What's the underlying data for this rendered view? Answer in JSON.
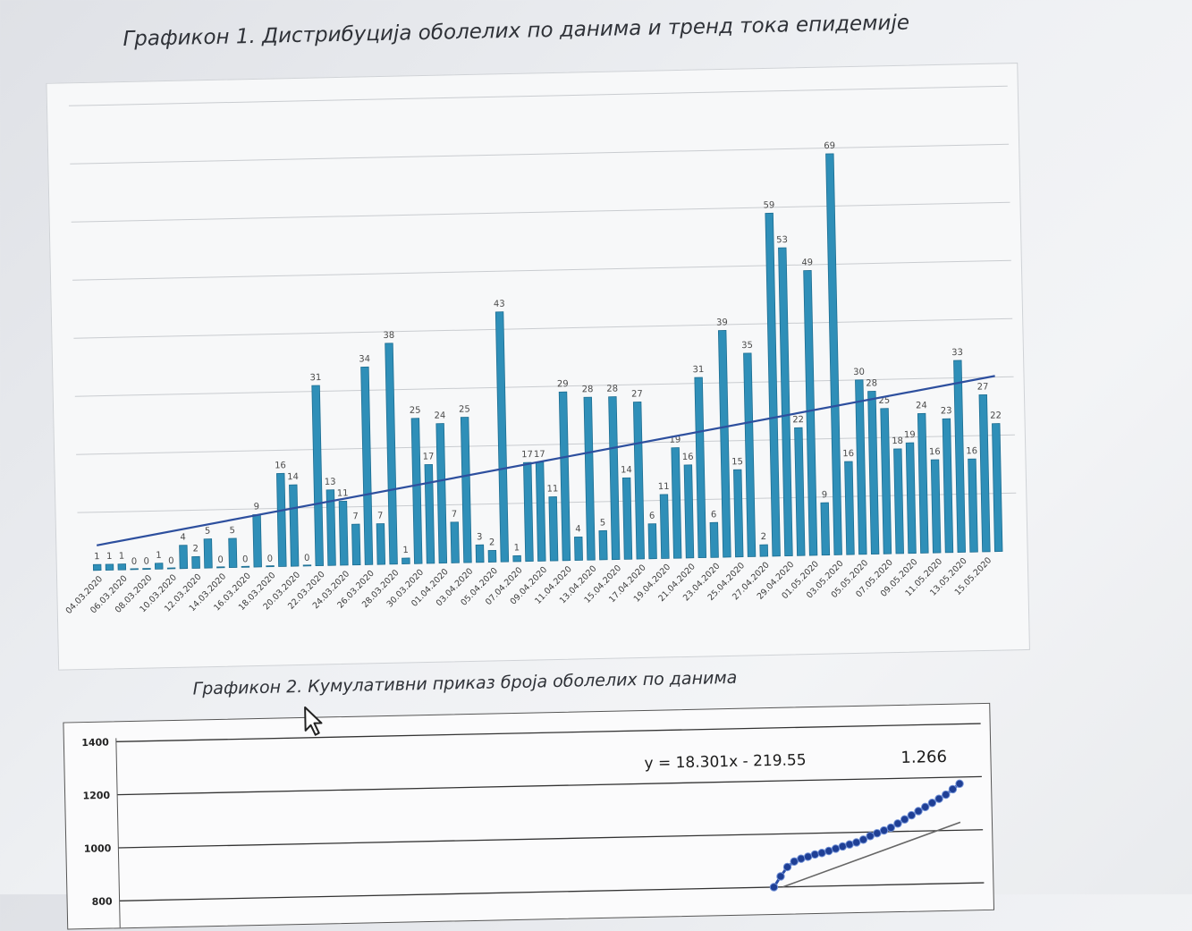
{
  "chart1": {
    "title": "Графикон 1. Дистрибуција оболелих по данима и тренд тока епидемије",
    "chart_data": {
      "type": "bar",
      "values": [
        1,
        1,
        1,
        0,
        0,
        1,
        0,
        4,
        2,
        5,
        0,
        5,
        0,
        9,
        0,
        16,
        14,
        0,
        31,
        13,
        11,
        7,
        34,
        7,
        38,
        1,
        25,
        17,
        24,
        7,
        25,
        3,
        2,
        43,
        1,
        17,
        17,
        11,
        29,
        4,
        28,
        5,
        28,
        14,
        27,
        6,
        11,
        19,
        16,
        31,
        6,
        39,
        15,
        35,
        2,
        59,
        53,
        22,
        49,
        9,
        69,
        16,
        30,
        28,
        25,
        18,
        19,
        24,
        16,
        23,
        33,
        16,
        27,
        22
      ],
      "tick_labels": [
        "04.03.2020",
        "06.03.2020",
        "08.03.2020",
        "10.03.2020",
        "12.03.2020",
        "14.03.2020",
        "16.03.2020",
        "18.03.2020",
        "20.03.2020",
        "22.03.2020",
        "24.03.2020",
        "26.03.2020",
        "28.03.2020",
        "30.03.2020",
        "01.04.2020",
        "03.04.2020",
        "05.04.2020",
        "07.04.2020",
        "09.04.2020",
        "11.04.2020",
        "13.04.2020",
        "15.04.2020",
        "17.04.2020",
        "19.04.2020",
        "21.04.2020",
        "23.04.2020",
        "25.04.2020",
        "27.04.2020",
        "29.04.2020",
        "01.05.2020",
        "03.05.2020",
        "05.05.2020",
        "07.05.2020",
        "09.05.2020",
        "11.05.2020",
        "13.05.2020",
        "15.05.2020"
      ],
      "trend": {
        "type": "linear",
        "start": 4.3,
        "end": 30.2
      },
      "ylim": [
        0,
        80
      ],
      "gridlines": [
        10,
        20,
        30,
        40,
        50,
        60,
        70,
        80
      ],
      "grid": true,
      "colors": {
        "bar": "#2f8fb8",
        "bar_edge": "#1d6e92",
        "trend": "#2d4f9e",
        "grid": "#c9ccd0",
        "label": "#4a4a4a"
      }
    }
  },
  "chart2": {
    "title": "Графикон 2. Кумулативни приказ броја оболелих по данима",
    "chart_data": {
      "type": "line",
      "ytick_labels": [
        "1400",
        "1200",
        "1000",
        "800"
      ],
      "ylim": [
        800,
        1400
      ],
      "equation": "y = 18.301x - 219.55",
      "annotation": "1.266",
      "series": [
        {
          "values": [
            800,
            840,
            875,
            895,
            905,
            912,
            920,
            925,
            932,
            940,
            948,
            955,
            962,
            972,
            985,
            995,
            1005,
            1015,
            1030,
            1045,
            1060,
            1075,
            1090,
            1105,
            1120,
            1135,
            1155,
            1175
          ]
        }
      ],
      "trend": {
        "start": 800,
        "end": 1030
      },
      "colors": {
        "line": "#2c4fa8",
        "marker": "#1f3f95",
        "trend": "#666666",
        "grid": "#333333"
      }
    }
  }
}
